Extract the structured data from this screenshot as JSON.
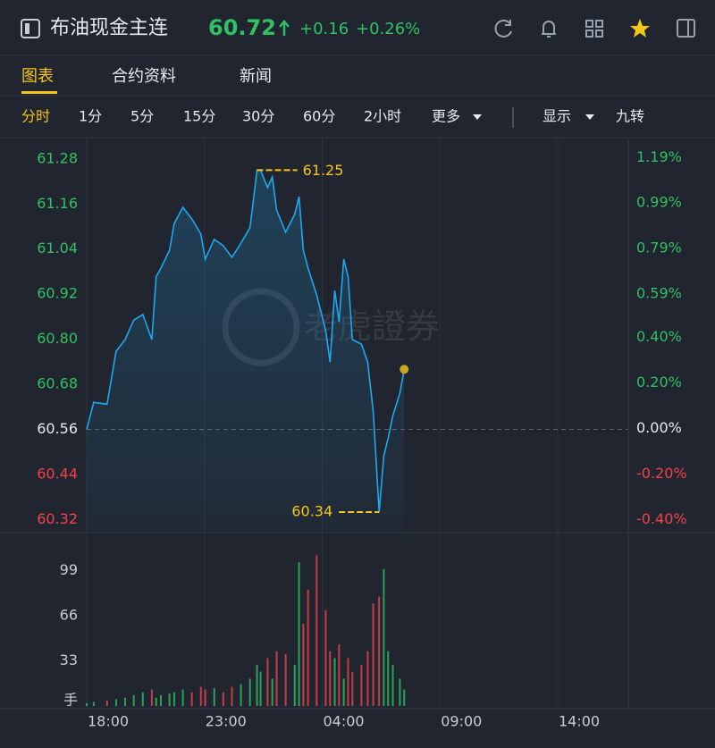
{
  "header": {
    "title": "布油现金主连",
    "price": "60.72",
    "change": "+0.16",
    "change_pct": "+0.26%"
  },
  "tabs": [
    "图表",
    "合约资料",
    "新闻"
  ],
  "toolbar": [
    "分时",
    "1分",
    "5分",
    "15分",
    "30分",
    "60分",
    "2小时",
    "更多"
  ],
  "toolbar_right": [
    "显示",
    "九转"
  ],
  "watermark": "老虎證券",
  "chart_data": {
    "type": "line",
    "x": [
      0,
      18,
      52,
      75,
      98,
      120,
      143,
      166,
      177,
      189,
      211,
      223,
      245,
      268,
      291,
      302,
      325,
      348,
      370,
      393,
      416,
      434,
      443,
      461,
      473,
      484,
      507,
      530,
      541,
      552,
      564,
      586,
      609,
      620,
      632,
      643,
      655,
      666,
      677,
      700,
      716,
      730,
      745,
      757,
      768,
      780,
      798,
      809
    ],
    "series": [
      {
        "color": "#1ea8f0",
        "values": [
          60.56,
          60.632,
          60.627,
          60.768,
          60.799,
          60.851,
          60.866,
          60.799,
          60.966,
          60.989,
          61.037,
          61.108,
          61.151,
          61.12,
          61.08,
          61.013,
          61.066,
          61.049,
          61.018,
          61.056,
          61.097,
          61.25,
          61.25,
          61.204,
          61.232,
          61.144,
          61.085,
          61.132,
          61.18,
          61.037,
          60.989,
          60.918,
          60.823,
          60.739,
          60.93,
          60.846,
          61.013,
          60.966,
          60.799,
          60.787,
          60.739,
          60.608,
          60.34,
          60.489,
          60.537,
          60.596,
          60.656,
          60.72
        ]
      }
    ],
    "high": 61.25,
    "low": 60.34,
    "reference": 60.56,
    "annotation_color": "#f5c518",
    "up_color": "#2fc163",
    "down_color": "#f0424d",
    "neutral_color": "#e8eaef",
    "xlim": [
      0,
      1380
    ],
    "xticks": [
      {
        "value": 0,
        "label": "18:00"
      },
      {
        "value": 300,
        "label": "23:00"
      },
      {
        "value": 600,
        "label": "04:00"
      },
      {
        "value": 900,
        "label": "09:00"
      },
      {
        "value": 1200,
        "label": "14:00"
      }
    ],
    "ylim": [
      60.29,
      61.32
    ],
    "yticks": [
      61.28,
      61.16,
      61.04,
      60.92,
      {
        "value": 60.8,
        "label": "60.80"
      },
      60.68,
      60.56,
      60.44,
      60.32
    ],
    "y2lim": [
      -0.45,
      1.25
    ],
    "y2ticks": [
      {
        "value": 1.19,
        "label": "1.19%"
      },
      {
        "value": 0.99,
        "label": "0.99%"
      },
      {
        "value": 0.79,
        "label": "0.79%"
      },
      {
        "value": 0.59,
        "label": "0.59%"
      },
      {
        "value": 0.4,
        "label": "0.40%"
      },
      {
        "value": 0.2,
        "label": "0.20%"
      },
      {
        "value": 0,
        "label": "0.00%"
      },
      {
        "value": -0.2,
        "label": "-0.20%"
      },
      {
        "value": -0.4,
        "label": "-0.40%"
      }
    ],
    "volume": {
      "values": [
        2,
        3,
        4,
        5,
        6,
        8,
        10,
        12,
        6,
        8,
        9,
        10,
        12,
        10,
        14,
        12,
        13,
        10,
        14,
        16,
        20,
        30,
        25,
        35,
        20,
        40,
        38,
        30,
        105,
        60,
        85,
        110,
        70,
        40,
        35,
        45,
        20,
        35,
        25,
        30,
        40,
        75,
        80,
        100,
        40,
        30,
        20,
        12
      ],
      "ylim": [
        0,
        124
      ],
      "yticks": [
        33,
        66,
        99
      ],
      "unit": "手"
    }
  }
}
